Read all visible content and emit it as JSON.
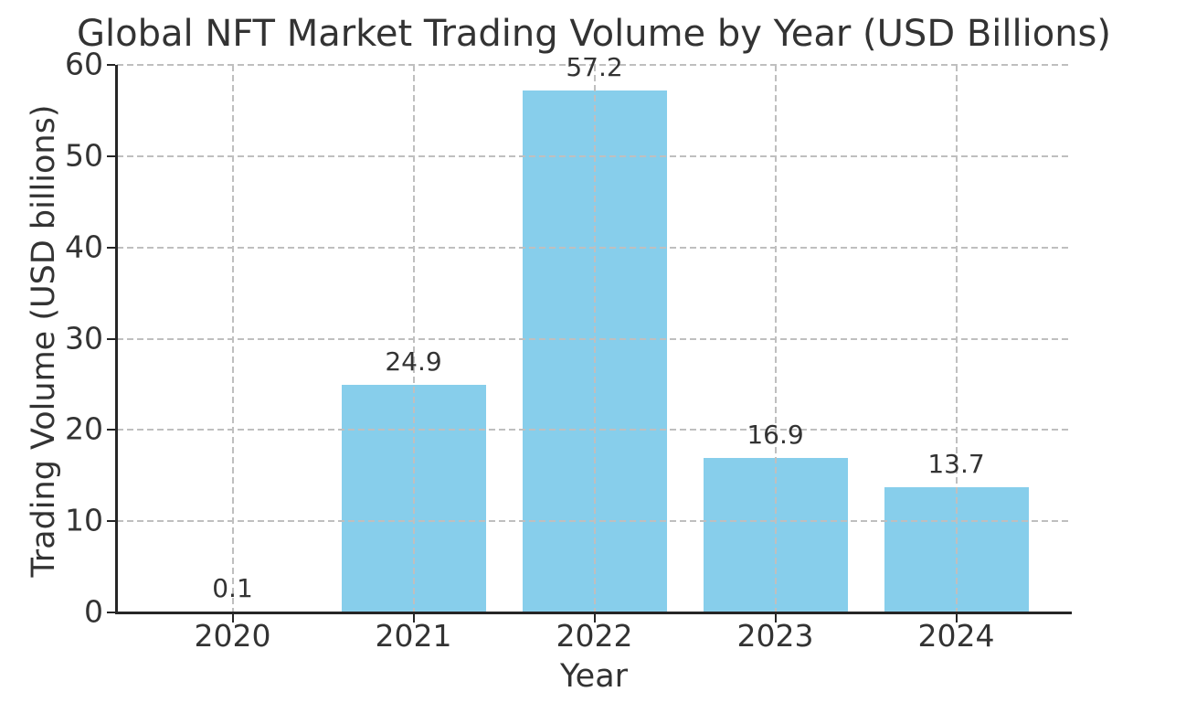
{
  "page": {
    "background": "#ffffff"
  },
  "chart_data": {
    "type": "bar",
    "title": "Global NFT Market Trading Volume by Year (USD Billions)",
    "xlabel": "Year",
    "ylabel": "Trading Volume (USD billions)",
    "categories": [
      "2020",
      "2021",
      "2022",
      "2023",
      "2024"
    ],
    "values": [
      0.1,
      24.9,
      57.2,
      16.9,
      13.7
    ],
    "bar_value_labels": [
      "0.1",
      "24.9",
      "57.2",
      "16.9",
      "13.7"
    ],
    "ylim": [
      0,
      60
    ],
    "yticks": [
      0,
      10,
      20,
      30,
      40,
      50,
      60
    ],
    "ytick_labels": [
      "0",
      "10",
      "20",
      "30",
      "40",
      "50",
      "60"
    ],
    "bar_width_fraction": 0.8,
    "grid": {
      "horizontal": true,
      "vertical": true,
      "style": "dashed",
      "color": "#bfbfbf",
      "drawn_above_bars": true
    },
    "legend": "none",
    "colors": {
      "bar_fill": "#87CEEB",
      "axis_line": "#262626",
      "text": "#333333",
      "grid": "#bfbfbf",
      "background": "#ffffff"
    }
  }
}
